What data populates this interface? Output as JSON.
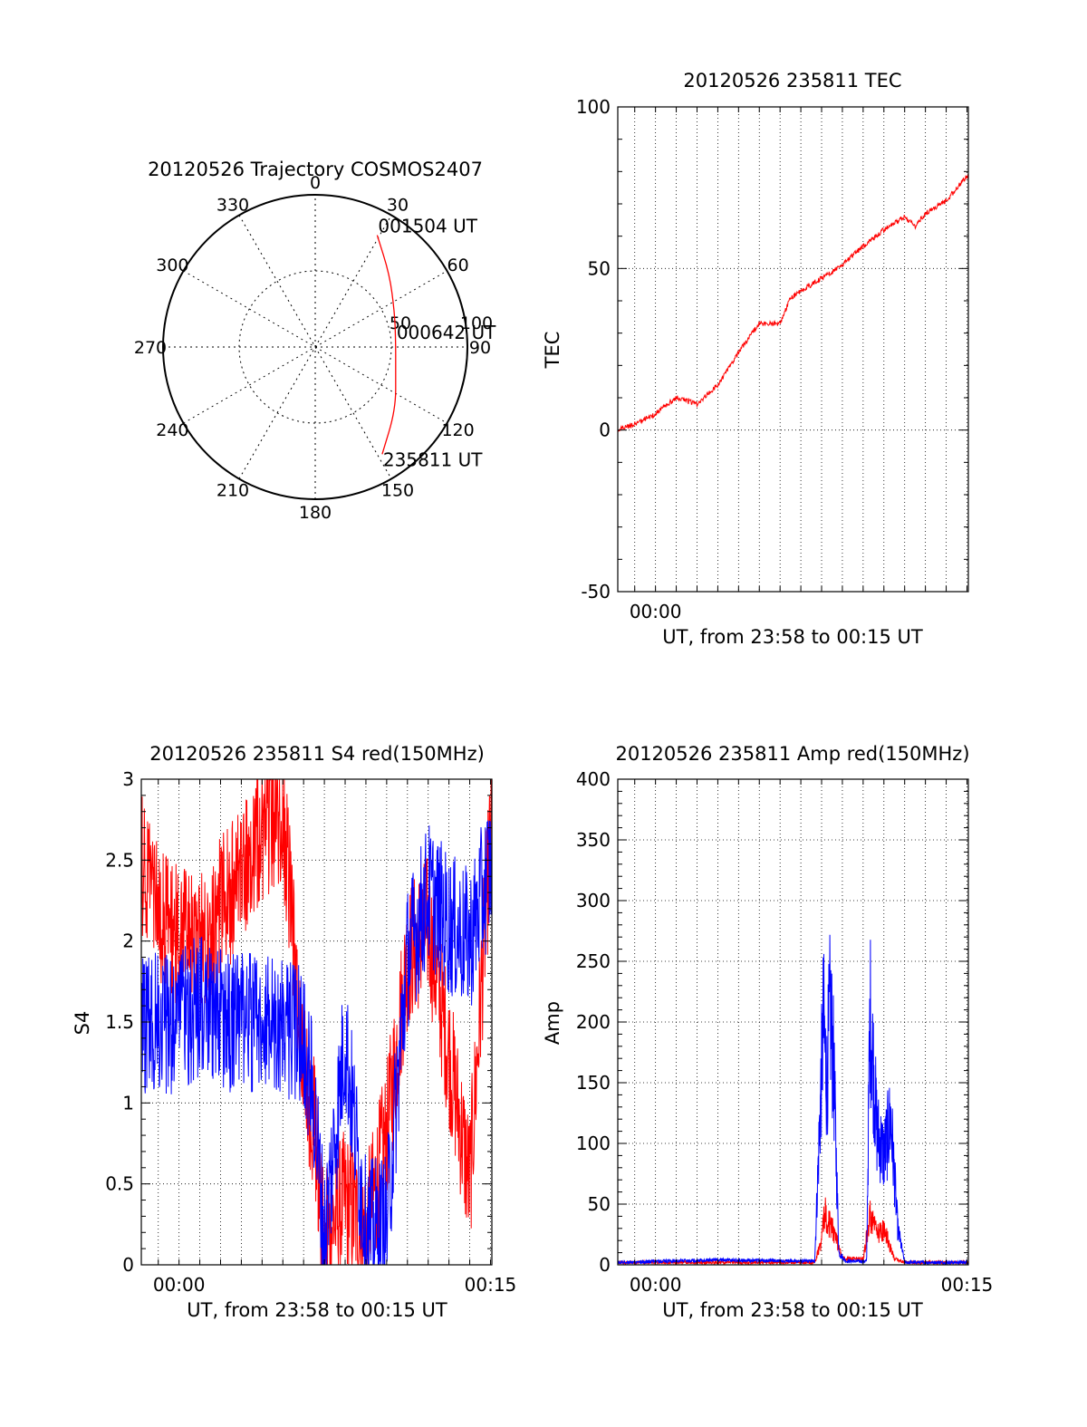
{
  "chart_data": [
    {
      "type": "polar",
      "title": "20120526 Trajectory COSMOS2407",
      "azimuth_labels": [
        "0",
        "30",
        "60",
        "90",
        "120",
        "150",
        "180",
        "210",
        "240",
        "270",
        "300",
        "330"
      ],
      "radial_labels": [
        "50",
        "100"
      ],
      "trajectory": {
        "color": "#ff0000",
        "points": [
          {
            "az": 148,
            "r": 83
          },
          {
            "az": 128,
            "r": 67
          },
          {
            "az": 106,
            "r": 55
          },
          {
            "az": 86,
            "r": 53
          },
          {
            "az": 66,
            "r": 57
          },
          {
            "az": 46,
            "r": 68
          },
          {
            "az": 29,
            "r": 84
          }
        ]
      },
      "annotations": [
        {
          "text": "235811 UT",
          "az": 148
        },
        {
          "text": "000642 UT",
          "az": 86
        },
        {
          "text": "001504 UT",
          "az": 29
        }
      ]
    },
    {
      "type": "line",
      "title": "20120526 235811 TEC",
      "xlabel": "UT, from 23:58 to 00:15 UT",
      "ylabel": "TEC",
      "xlim": [
        "23:58:11",
        "00:15:04"
      ],
      "ylim": [
        -50,
        100
      ],
      "yticks": [
        "-50",
        "0",
        "50",
        "100"
      ],
      "xticks": [
        {
          "label": "00:00",
          "t": "00:00:00"
        }
      ],
      "grid": true,
      "series": [
        {
          "color": "#ff0000",
          "x": [
            "23:58:11",
            "23:59:00",
            "00:00:00",
            "00:01:00",
            "00:02:00",
            "00:03:00",
            "00:04:00",
            "00:05:00",
            "00:05:30",
            "00:06:00",
            "00:06:30",
            "00:07:00",
            "00:08:00",
            "00:09:00",
            "00:10:00",
            "00:11:00",
            "00:12:00",
            "00:12:30",
            "00:13:00",
            "00:14:00",
            "00:15:04"
          ],
          "y": [
            0,
            2,
            5,
            10,
            8,
            14,
            24,
            33,
            33,
            33,
            41,
            43,
            47,
            51,
            57,
            62,
            66,
            63,
            67,
            71,
            79
          ]
        }
      ]
    },
    {
      "type": "line",
      "title": "20120526 235811 S4 red(150MHz)",
      "xlabel": "UT, from 23:58 to 00:15 UT",
      "ylabel": "S4",
      "xlim": [
        "23:58:11",
        "00:15:04"
      ],
      "ylim": [
        0,
        3
      ],
      "yticks": [
        "0",
        "0.5",
        "1",
        "1.5",
        "2",
        "2.5",
        "3"
      ],
      "xticks": [
        {
          "label": "00:00",
          "t": "00:00:00"
        },
        {
          "label": "00:15",
          "t": "00:15:00"
        }
      ],
      "grid": true,
      "series": [
        {
          "color": "#ff0000",
          "x": [
            "23:58:11",
            "23:59:00",
            "00:00:00",
            "00:01:00",
            "00:02:00",
            "00:03:00",
            "00:04:00",
            "00:05:00",
            "00:06:00",
            "00:06:30",
            "00:07:00",
            "00:08:00",
            "00:09:00",
            "00:10:00",
            "00:11:00",
            "00:12:00",
            "00:13:00",
            "00:14:00",
            "00:15:04"
          ],
          "y": [
            2.5,
            2.2,
            2.0,
            2.0,
            2.2,
            2.4,
            2.7,
            2.8,
            1.2,
            0.9,
            0.15,
            0.4,
            0.2,
            0.8,
            1.9,
            2.1,
            1.3,
            0.5,
            2.8
          ]
        },
        {
          "color": "#0000ff",
          "x": [
            "23:58:11",
            "23:59:00",
            "00:00:00",
            "00:01:00",
            "00:02:00",
            "00:03:00",
            "00:04:00",
            "00:05:00",
            "00:06:00",
            "00:06:30",
            "00:07:00",
            "00:08:00",
            "00:09:00",
            "00:10:00",
            "00:11:00",
            "00:12:00",
            "00:13:00",
            "00:14:00",
            "00:15:04"
          ],
          "y": [
            1.5,
            1.5,
            1.5,
            1.6,
            1.5,
            1.5,
            1.5,
            1.5,
            1.4,
            1.0,
            0.15,
            1.4,
            0.2,
            0.25,
            1.9,
            2.3,
            2.1,
            2.0,
            2.5
          ]
        }
      ]
    },
    {
      "type": "line",
      "title": "20120526 235811 Amp red(150MHz)",
      "xlabel": "UT, from 23:58 to 00:15 UT",
      "ylabel": "Amp",
      "xlim": [
        "23:58:11",
        "00:15:04"
      ],
      "ylim": [
        0,
        400
      ],
      "yticks": [
        "0",
        "50",
        "100",
        "150",
        "200",
        "250",
        "300",
        "350",
        "400"
      ],
      "xticks": [
        {
          "label": "00:00",
          "t": "00:00:00"
        },
        {
          "label": "00:15",
          "t": "00:15:00"
        }
      ],
      "grid": true,
      "series": [
        {
          "color": "#ff0000",
          "x": [
            "23:58:11",
            "00:07:40",
            "00:08:00",
            "00:08:10",
            "00:08:20",
            "00:08:40",
            "00:09:00",
            "00:10:00",
            "00:10:20",
            "00:10:40",
            "00:11:00",
            "00:11:30",
            "00:12:00",
            "00:15:04"
          ],
          "y": [
            2,
            2,
            20,
            45,
            35,
            25,
            5,
            5,
            40,
            25,
            30,
            5,
            2,
            2
          ]
        },
        {
          "color": "#0000ff",
          "x": [
            "23:58:11",
            "00:03:00",
            "00:07:40",
            "00:07:55",
            "00:08:05",
            "00:08:15",
            "00:08:25",
            "00:08:35",
            "00:08:50",
            "00:09:10",
            "00:10:10",
            "00:10:20",
            "00:10:40",
            "00:11:00",
            "00:11:20",
            "00:11:40",
            "00:12:00",
            "00:15:04"
          ],
          "y": [
            2,
            4,
            3,
            120,
            200,
            150,
            210,
            160,
            10,
            3,
            3,
            210,
            110,
            90,
            120,
            30,
            2,
            2
          ]
        }
      ]
    }
  ]
}
